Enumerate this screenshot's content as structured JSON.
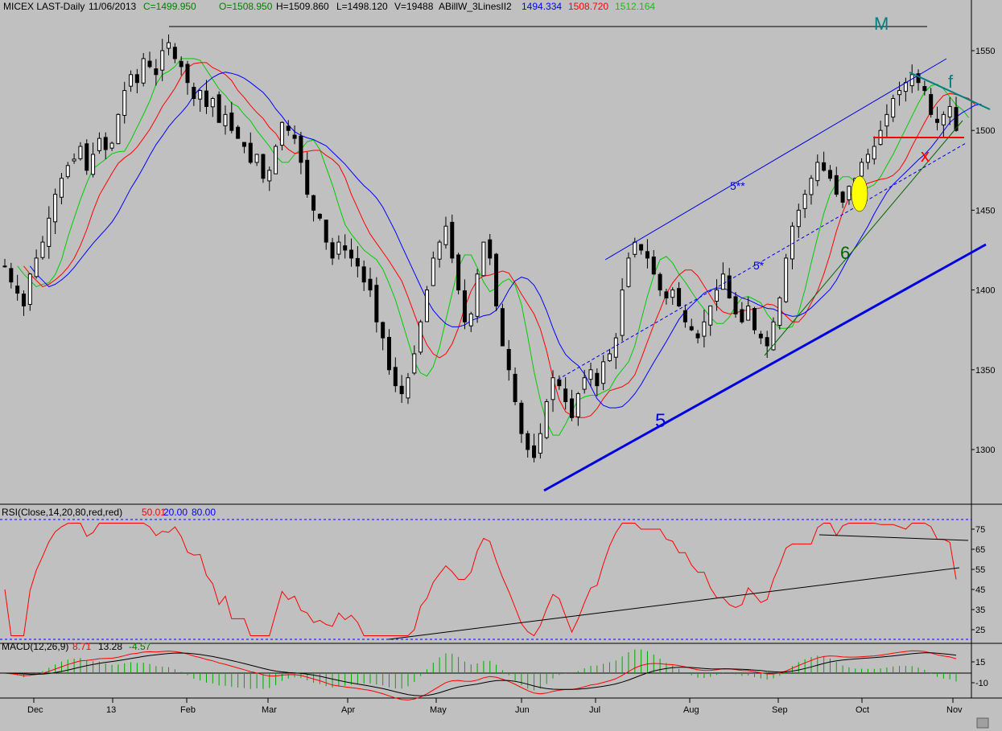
{
  "header": {
    "symbol": "MICEX LAST-Daily",
    "date": "11/06/2013",
    "close": "C=1499.950",
    "open": "O=1508.950",
    "high": "H=1509.860",
    "low": "L=1498.120",
    "volume": "V=19488",
    "indicator": "ABillW_3LinesII2",
    "ind_blue": "1494.334",
    "ind_red": "1508.720",
    "ind_green": "1512.164"
  },
  "rsi_header": {
    "label": "RSI(Close,14,20,80,red,red)",
    "value": "50.01",
    "low": "20.00",
    "high": "80.00"
  },
  "macd_header": {
    "label": "MACD(12,26,9)",
    "v1": "8.71",
    "v2": "13.28",
    "v3": "-4.57"
  },
  "annotations": {
    "m": "M",
    "f": "f",
    "x": "x",
    "five": "5",
    "six": "6",
    "five_double_star": "5**",
    "five_star": "5*"
  },
  "colors": {
    "background": "#c0c0c0",
    "candle": "#000000",
    "ma_green": "#00cc00",
    "ma_red": "#ff0000",
    "ma_blue": "#0000ff",
    "trend_blue": "#0000e0",
    "teal": "#008080",
    "highlight": "#ffff00"
  },
  "chart_data": [
    {
      "type": "candlestick",
      "title": "MICEX LAST-Daily",
      "ylim": [
        1265,
        1570
      ],
      "y_ticks": [
        1300,
        1350,
        1400,
        1450,
        1500,
        1550
      ],
      "x_ticks": [
        "Dec",
        "13",
        "Feb",
        "Mar",
        "Apr",
        "May",
        "Jun",
        "Jul",
        "Aug",
        "Sep",
        "Oct",
        "Nov"
      ],
      "close_series_approx": [
        1415,
        1405,
        1398,
        1390,
        1410,
        1420,
        1430,
        1445,
        1460,
        1470,
        1478,
        1482,
        1490,
        1475,
        1485,
        1495,
        1488,
        1492,
        1510,
        1525,
        1535,
        1530,
        1545,
        1540,
        1535,
        1550,
        1555,
        1545,
        1540,
        1530,
        1520,
        1525,
        1515,
        1520,
        1505,
        1510,
        1500,
        1495,
        1490,
        1480,
        1485,
        1470,
        1475,
        1490,
        1505,
        1500,
        1495,
        1480,
        1460,
        1450,
        1445,
        1430,
        1420,
        1430,
        1425,
        1420,
        1415,
        1405,
        1400,
        1380,
        1370,
        1350,
        1340,
        1335,
        1345,
        1360,
        1380,
        1400,
        1420,
        1430,
        1440,
        1420,
        1400,
        1380,
        1385,
        1410,
        1430,
        1420,
        1390,
        1365,
        1350,
        1330,
        1310,
        1300,
        1295,
        1310,
        1330,
        1345,
        1340,
        1330,
        1320,
        1335,
        1345,
        1350,
        1340,
        1355,
        1360,
        1370,
        1400,
        1420,
        1430,
        1425,
        1420,
        1410,
        1400,
        1395,
        1400,
        1390,
        1380,
        1375,
        1370,
        1380,
        1390,
        1400,
        1410,
        1395,
        1385,
        1380,
        1390,
        1375,
        1370,
        1365,
        1380,
        1395,
        1420,
        1440,
        1450,
        1460,
        1470,
        1480,
        1475,
        1470,
        1460,
        1455,
        1465,
        1470,
        1480,
        1485,
        1490,
        1500,
        1510,
        1520,
        1525,
        1530,
        1535,
        1530,
        1525,
        1510,
        1505,
        1510,
        1515,
        1500
      ],
      "indicator_values": {
        "blue": 1494.334,
        "red": 1508.72,
        "green": 1512.164
      }
    },
    {
      "type": "line",
      "title": "RSI(Close,14,20,80,red,red)",
      "ylim": [
        15,
        85
      ],
      "y_ticks": [
        25,
        35,
        45,
        55,
        65,
        75
      ],
      "levels": [
        20,
        80
      ],
      "last_value": 50.01
    },
    {
      "type": "line",
      "title": "MACD(12,26,9)",
      "y_ticks": [
        -10,
        15
      ],
      "values": {
        "macd": 8.71,
        "signal": 13.28,
        "histogram": -4.57
      }
    }
  ]
}
